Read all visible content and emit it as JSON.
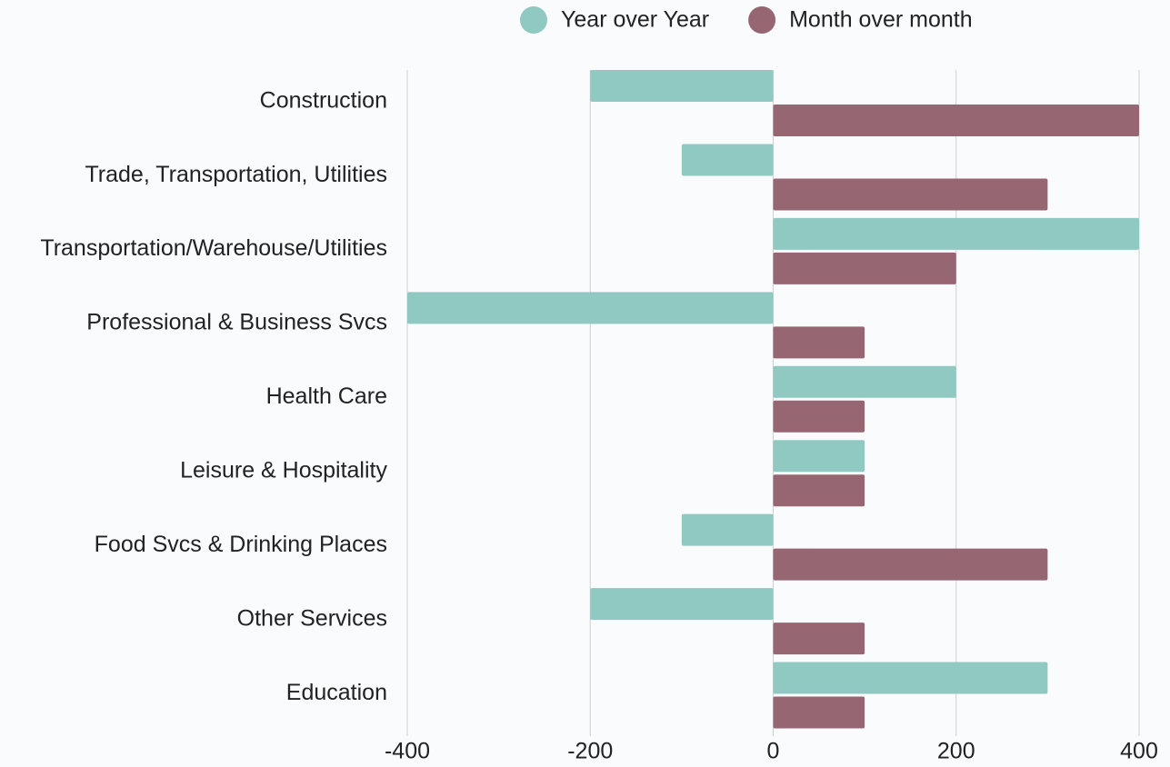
{
  "chart_data": {
    "type": "hbar",
    "categories": [
      "Construction",
      "Trade, Transportation, Utilities",
      "Transportation/Warehouse/Utilities",
      "Professional & Business Svcs",
      "Health Care",
      "Leisure & Hospitality",
      "Food Svcs & Drinking Places",
      "Other Services",
      "Education"
    ],
    "series": [
      {
        "name": "Year over Year",
        "color": "#90c9c2",
        "values": [
          -200,
          -100,
          400,
          -400,
          200,
          100,
          -100,
          -200,
          300
        ]
      },
      {
        "name": "Month over month",
        "color": "#976673",
        "values": [
          400,
          300,
          200,
          100,
          100,
          100,
          300,
          100,
          100
        ]
      }
    ],
    "xlim": [
      -400,
      400
    ],
    "xticks": [
      -400,
      -200,
      0,
      200,
      400
    ],
    "grid": true,
    "legend": "top"
  }
}
